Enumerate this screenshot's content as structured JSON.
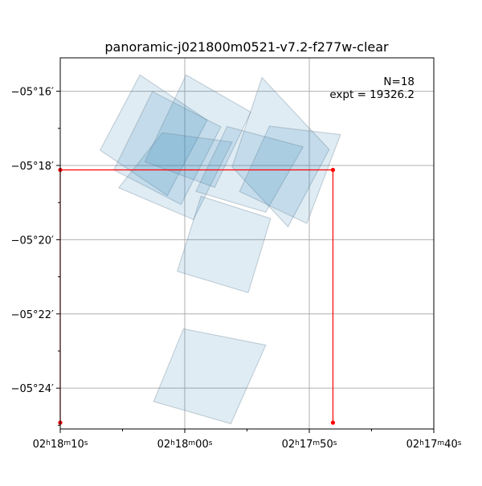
{
  "chart_data": {
    "type": "polygon_footprints",
    "title": "panoramic-j021800m0521-v7.2-f277w-clear",
    "annotation": {
      "n_label": "N=18",
      "expt_label": "expt = 19326.2"
    },
    "axes": {
      "x": {
        "label": "",
        "units": "seconds of RA offset from 02h17m40s",
        "range": [
          30.0,
          0.0
        ],
        "ticks": [
          {
            "value": 30,
            "h": "02",
            "m": "18",
            "s": "10"
          },
          {
            "value": 20,
            "h": "02",
            "m": "18",
            "s": "00"
          },
          {
            "value": 10,
            "h": "02",
            "m": "17",
            "s": "50"
          },
          {
            "value": 0,
            "h": "02",
            "m": "17",
            "s": "40"
          }
        ],
        "minor_ticks": [
          25,
          15,
          5
        ]
      },
      "y": {
        "label": "",
        "units": "arcmin south of -05°00′",
        "range": [
          15.1,
          25.1
        ],
        "ticks": [
          {
            "value": 16,
            "text": "−05°16′"
          },
          {
            "value": 18,
            "text": "−05°18′"
          },
          {
            "value": 20,
            "text": "−05°20′"
          },
          {
            "value": 22,
            "text": "−05°22′"
          },
          {
            "value": 24,
            "text": "−05°24′"
          }
        ],
        "minor_ticks": [
          17,
          19,
          21,
          23,
          25
        ]
      },
      "grid": true
    },
    "footprints": [
      [
        [
          23.6,
          15.56
        ],
        [
          26.8,
          17.59
        ],
        [
          21.4,
          18.81
        ],
        [
          18.2,
          16.78
        ]
      ],
      [
        [
          22.6,
          16.01
        ],
        [
          25.7,
          18.12
        ],
        [
          20.3,
          19.05
        ],
        [
          17.1,
          16.96
        ]
      ],
      [
        [
          19.9,
          15.56
        ],
        [
          23.2,
          17.9
        ],
        [
          17.6,
          18.59
        ],
        [
          14.7,
          16.56
        ]
      ],
      [
        [
          21.8,
          17.12
        ],
        [
          25.3,
          18.6
        ],
        [
          19.3,
          19.46
        ],
        [
          16.2,
          17.37
        ]
      ],
      [
        [
          13.8,
          15.63
        ],
        [
          16.2,
          18.04
        ],
        [
          11.7,
          19.65
        ],
        [
          8.4,
          17.57
        ]
      ],
      [
        [
          16.6,
          16.95
        ],
        [
          19.1,
          18.7
        ],
        [
          13.5,
          19.26
        ],
        [
          10.5,
          17.5
        ]
      ],
      [
        [
          13.2,
          16.94
        ],
        [
          15.6,
          18.7
        ],
        [
          10.2,
          19.56
        ],
        [
          7.5,
          17.17
        ]
      ],
      [
        [
          18.7,
          18.83
        ],
        [
          20.6,
          20.85
        ],
        [
          14.9,
          21.43
        ],
        [
          13.1,
          19.43
        ]
      ],
      [
        [
          20.1,
          22.4
        ],
        [
          22.5,
          24.36
        ],
        [
          16.3,
          24.96
        ],
        [
          13.5,
          22.84
        ]
      ]
    ],
    "red_frame": {
      "points": [
        [
          30.0,
          18.12
        ],
        [
          8.1,
          18.12
        ]
      ],
      "legs": [
        [
          30.0,
          24.93
        ],
        [
          8.1,
          24.93
        ]
      ]
    },
    "colors": {
      "fill": "#1f77b4",
      "frame": "#ff0000",
      "grid": "#b0b0b0"
    }
  }
}
